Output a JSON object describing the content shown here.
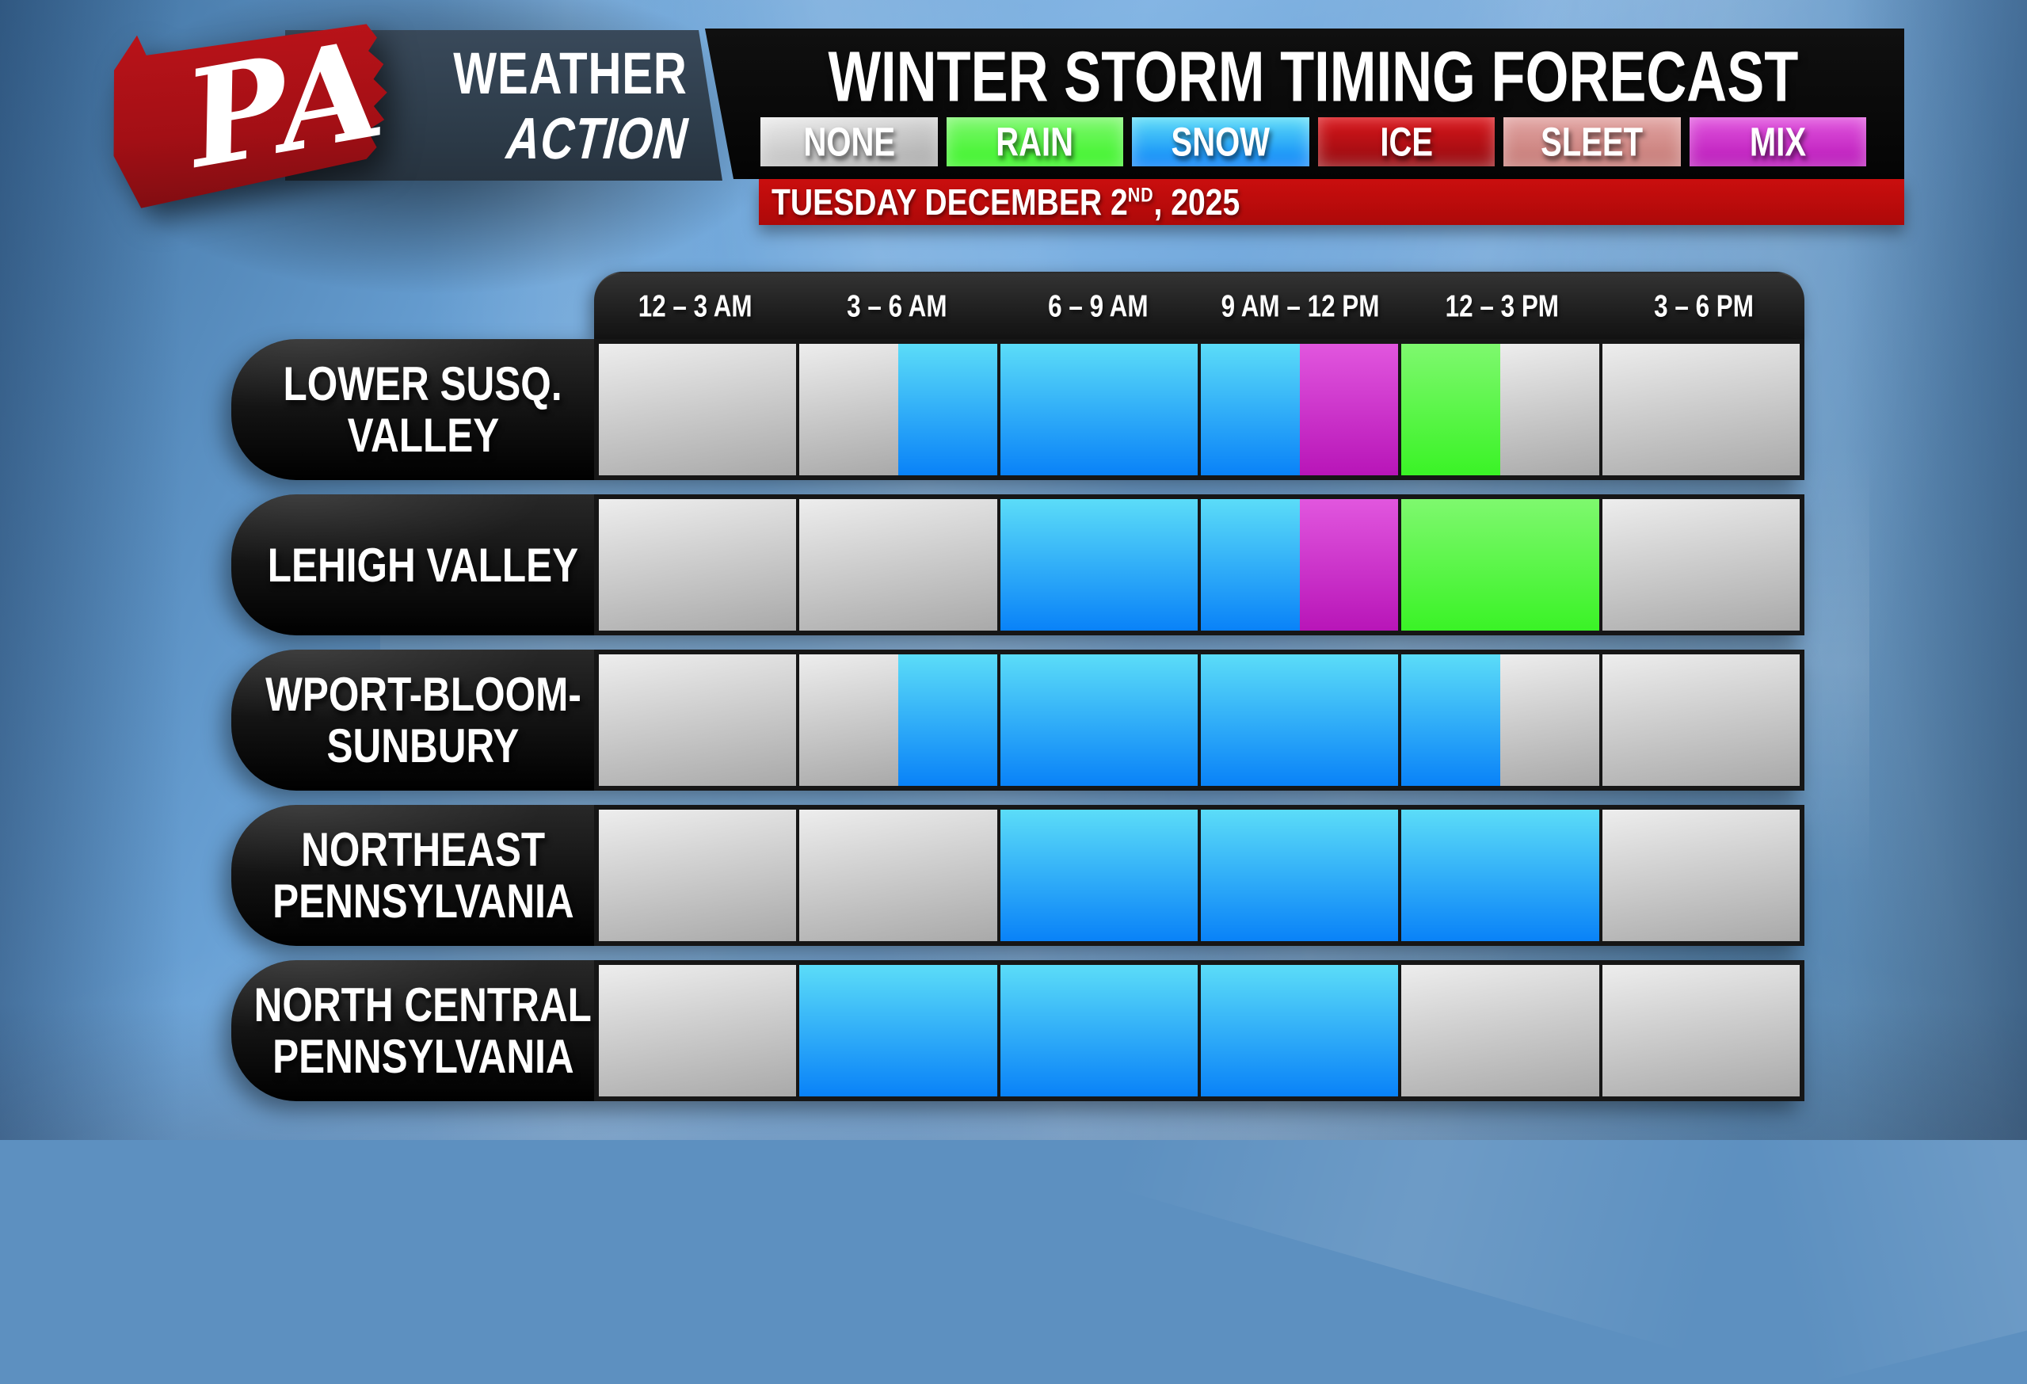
{
  "header": {
    "brand": {
      "state_label": "PA",
      "line1": "WEATHER",
      "line2": "ACTION"
    },
    "title": "WINTER STORM TIMING FORECAST",
    "date": {
      "before": "TUESDAY DECEMBER 2",
      "sup": "ND",
      "after": ", 2025"
    }
  },
  "legend": {
    "items": [
      {
        "label": "NONE",
        "type": "none"
      },
      {
        "label": "RAIN",
        "type": "rain"
      },
      {
        "label": "SNOW",
        "type": "snow"
      },
      {
        "label": "ICE",
        "type": "ice"
      },
      {
        "label": "SLEET",
        "type": "sleet"
      },
      {
        "label": "MIX",
        "type": "mix"
      }
    ]
  },
  "colors": {
    "banner_red_top": "#ca0e0e",
    "banner_red_bottom": "#ad0909",
    "logo_red": "#b01217",
    "logo_red_dark": "#820d12",
    "panel_slate": "#31404e",
    "panel_black": "#0a0a0a",
    "none_top": "#ededed",
    "none_bottom": "#a9a9a9",
    "rain_top": "#7ef86e",
    "rain_bottom": "#3af326",
    "snow_top": "#5bdcf8",
    "snow_bottom": "#0982f8",
    "ice_top": "#d9151a",
    "ice_bottom": "#930b10",
    "sleet_top": "#e2a4a2",
    "sleet_bottom": "#c47874",
    "mix_top": "#e156de",
    "mix_bottom": "#b815b8"
  },
  "chart_data": {
    "type": "heatmap",
    "title": "WINTER STORM TIMING FORECAST",
    "date": "TUESDAY DECEMBER 2ND, 2025",
    "legend": [
      "NONE",
      "RAIN",
      "SNOW",
      "ICE",
      "SLEET",
      "MIX"
    ],
    "columns": [
      "12 – 3 AM",
      "3 – 6 AM",
      "6 – 9 AM",
      "9 AM – 12 PM",
      "12 – 3 PM",
      "3 – 6 PM"
    ],
    "rows": [
      {
        "region": "LOWER SUSQ. VALLEY",
        "name_lines": [
          "LOWER SUSQ.",
          "VALLEY"
        ],
        "cells": [
          [
            {
              "type": "none",
              "frac": 1
            }
          ],
          [
            {
              "type": "none",
              "frac": 0.5
            },
            {
              "type": "snow",
              "frac": 0.5
            }
          ],
          [
            {
              "type": "snow",
              "frac": 1
            }
          ],
          [
            {
              "type": "snow",
              "frac": 0.5
            },
            {
              "type": "mix",
              "frac": 0.5
            }
          ],
          [
            {
              "type": "rain",
              "frac": 0.5
            },
            {
              "type": "none",
              "frac": 0.5
            }
          ],
          [
            {
              "type": "none",
              "frac": 1
            }
          ]
        ]
      },
      {
        "region": "LEHIGH VALLEY",
        "name_lines": [
          "LEHIGH VALLEY"
        ],
        "cells": [
          [
            {
              "type": "none",
              "frac": 1
            }
          ],
          [
            {
              "type": "none",
              "frac": 1
            }
          ],
          [
            {
              "type": "snow",
              "frac": 1
            }
          ],
          [
            {
              "type": "snow",
              "frac": 0.5
            },
            {
              "type": "mix",
              "frac": 0.5
            }
          ],
          [
            {
              "type": "rain",
              "frac": 1
            }
          ],
          [
            {
              "type": "none",
              "frac": 1
            }
          ]
        ]
      },
      {
        "region": "WPORT-BLOOM-SUNBURY",
        "name_lines": [
          "WPORT-BLOOM-",
          "SUNBURY"
        ],
        "cells": [
          [
            {
              "type": "none",
              "frac": 1
            }
          ],
          [
            {
              "type": "none",
              "frac": 0.5
            },
            {
              "type": "snow",
              "frac": 0.5
            }
          ],
          [
            {
              "type": "snow",
              "frac": 1
            }
          ],
          [
            {
              "type": "snow",
              "frac": 1
            }
          ],
          [
            {
              "type": "snow",
              "frac": 0.5
            },
            {
              "type": "none",
              "frac": 0.5
            }
          ],
          [
            {
              "type": "none",
              "frac": 1
            }
          ]
        ]
      },
      {
        "region": "NORTHEAST PENNSYLVANIA",
        "name_lines": [
          "NORTHEAST",
          "PENNSYLVANIA"
        ],
        "cells": [
          [
            {
              "type": "none",
              "frac": 1
            }
          ],
          [
            {
              "type": "none",
              "frac": 1
            }
          ],
          [
            {
              "type": "snow",
              "frac": 1
            }
          ],
          [
            {
              "type": "snow",
              "frac": 1
            }
          ],
          [
            {
              "type": "snow",
              "frac": 1
            }
          ],
          [
            {
              "type": "none",
              "frac": 1
            }
          ]
        ]
      },
      {
        "region": "NORTH CENTRAL PENNSYLVANIA",
        "name_lines": [
          "NORTH CENTRAL",
          "PENNSYLVANIA"
        ],
        "cells": [
          [
            {
              "type": "none",
              "frac": 1
            }
          ],
          [
            {
              "type": "snow",
              "frac": 1
            }
          ],
          [
            {
              "type": "snow",
              "frac": 1
            }
          ],
          [
            {
              "type": "snow",
              "frac": 1
            }
          ],
          [
            {
              "type": "none",
              "frac": 1
            }
          ],
          [
            {
              "type": "none",
              "frac": 1
            }
          ]
        ]
      }
    ]
  }
}
